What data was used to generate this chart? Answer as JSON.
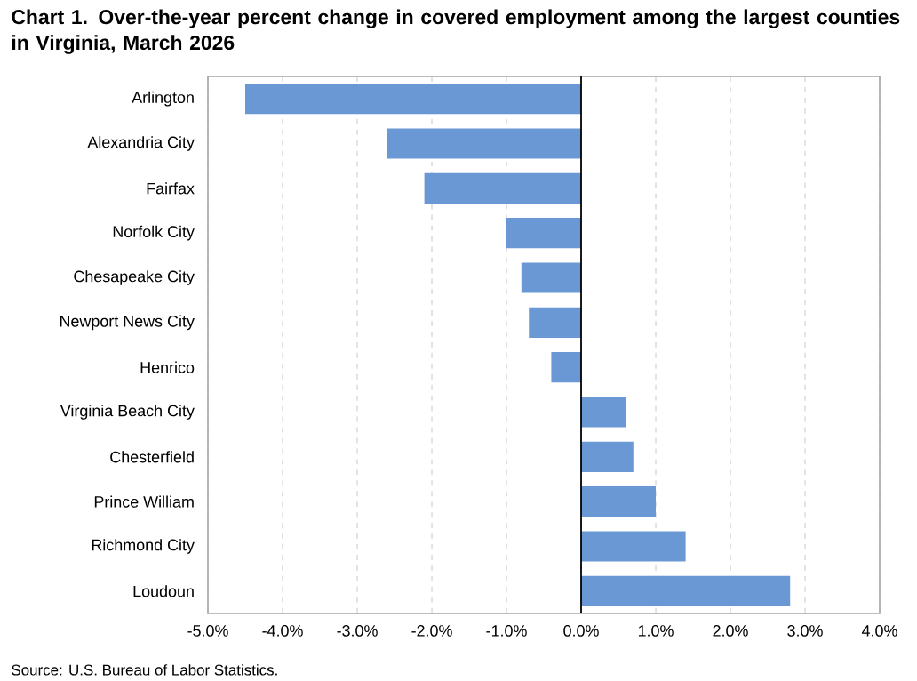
{
  "chart_data": {
    "type": "bar",
    "orientation": "horizontal",
    "title": "Chart 1.  Over-the-year percent change in covered employment among the largest counties in Virginia, March 2026",
    "categories": [
      "Arlington",
      "Alexandria City",
      "Fairfax",
      "Norfolk City",
      "Chesapeake City",
      "Newport News City",
      "Henrico",
      "Virginia Beach City",
      "Chesterfield",
      "Prince William",
      "Richmond City",
      "Loudoun"
    ],
    "values": [
      -4.5,
      -2.6,
      -2.1,
      -1.0,
      -0.8,
      -0.7,
      -0.4,
      0.6,
      0.7,
      1.0,
      1.4,
      2.8
    ],
    "color": "#6a98d4",
    "xlim": [
      -5,
      4
    ],
    "xticks": [
      {
        "value": -5,
        "label": "-5.0%"
      },
      {
        "value": -4,
        "label": "-4.0%"
      },
      {
        "value": -3,
        "label": "-3.0%"
      },
      {
        "value": -2,
        "label": "-2.0%"
      },
      {
        "value": -1,
        "label": "-1.0%"
      },
      {
        "value": 0,
        "label": "0.0%"
      },
      {
        "value": 1,
        "label": "1.0%"
      },
      {
        "value": 2,
        "label": "2.0%"
      },
      {
        "value": 3,
        "label": "3.0%"
      },
      {
        "value": 4,
        "label": "4.0%"
      }
    ],
    "grid": "x",
    "annotations": [
      "Source: U.S. Bureau of Labor Statistics."
    ]
  }
}
